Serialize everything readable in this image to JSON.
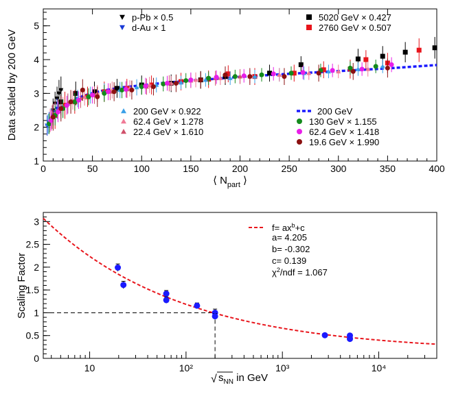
{
  "chart_data": [
    {
      "type": "scatter",
      "xlabel": "⟨ N",
      "xlabel_sub": "part",
      "xlabel_tail": " ⟩",
      "ylabel": "Data scaled by 200 GeV",
      "xlim": [
        0,
        400
      ],
      "ylim": [
        1,
        5.5
      ],
      "x_ticks": [
        0,
        50,
        100,
        150,
        200,
        250,
        300,
        350,
        400
      ],
      "y_ticks": [
        1,
        2,
        3,
        4,
        5
      ],
      "grid": false,
      "legends": [
        {
          "position": "top-left",
          "entries": [
            {
              "label": "p-Pb × 0.5",
              "marker": "triangle-down",
              "color": "#000000"
            },
            {
              "label": "d-Au × 1",
              "marker": "triangle-down",
              "color": "#1a3bd6"
            }
          ]
        },
        {
          "position": "top-right",
          "entries": [
            {
              "label": "5020  GeV × 0.427",
              "marker": "square",
              "color": "#000000"
            },
            {
              "label": "2760  GeV × 0.507",
              "marker": "square",
              "color": "#e8141b"
            }
          ]
        },
        {
          "position": "center-left",
          "entries": [
            {
              "label": "200  GeV × 0.922",
              "marker": "triangle-up",
              "color": "#3aa0e8"
            },
            {
              "label": "62.4 GeV × 1.278",
              "marker": "triangle-up",
              "color": "#f07a96"
            },
            {
              "label": "22.4 GeV × 1.610",
              "marker": "triangle-up",
              "color": "#d0506a"
            }
          ]
        },
        {
          "position": "center-right",
          "entries": [
            {
              "label": "200   GeV",
              "marker": "dashed-line",
              "color": "#1a1aff"
            },
            {
              "label": "130   GeV × 1.155",
              "marker": "circle",
              "color": "#138a1c"
            },
            {
              "label": " 62.4 GeV × 1.418",
              "marker": "circle",
              "color": "#e81ee8"
            },
            {
              "label": "19.6  GeV × 1.990",
              "marker": "circle",
              "color": "#8b1010"
            }
          ]
        }
      ],
      "series": [
        {
          "name": "200   GeV",
          "style": "dashed-line",
          "color": "#1a1aff",
          "x": [
            5,
            10,
            15,
            20,
            30,
            40,
            50,
            60,
            80,
            100,
            125,
            150,
            175,
            200,
            250,
            300,
            350,
            400
          ],
          "y": [
            2.05,
            2.3,
            2.5,
            2.62,
            2.8,
            2.92,
            3.01,
            3.08,
            3.18,
            3.24,
            3.32,
            3.38,
            3.43,
            3.49,
            3.58,
            3.66,
            3.74,
            3.84
          ]
        },
        {
          "name": "p-Pb × 0.5",
          "marker": "triangle-down",
          "color": "#000000",
          "x": [
            10,
            12,
            14,
            16,
            18
          ],
          "y": [
            2.5,
            2.7,
            2.85,
            3.0,
            3.1
          ],
          "yerr": [
            0.35,
            0.35,
            0.35,
            0.4,
            0.4
          ]
        },
        {
          "name": "d-Au × 1",
          "marker": "triangle-down",
          "color": "#1a3bd6",
          "x": [
            4,
            6,
            8,
            10,
            12,
            14
          ],
          "y": [
            2.05,
            2.15,
            2.25,
            2.35,
            2.45,
            2.55
          ],
          "yerr": [
            0.3,
            0.3,
            0.3,
            0.3,
            0.3,
            0.3
          ]
        },
        {
          "name": "5020  GeV × 0.427",
          "marker": "square",
          "color": "#000000",
          "x": [
            18,
            33,
            52,
            75,
            100,
            130,
            160,
            185,
            230,
            262,
            320,
            345,
            368,
            398
          ],
          "y": [
            2.75,
            3.0,
            3.05,
            3.15,
            3.25,
            3.3,
            3.4,
            3.5,
            3.6,
            3.85,
            4.02,
            4.1,
            4.22,
            4.35
          ],
          "yerr": [
            0.4,
            0.35,
            0.3,
            0.28,
            0.28,
            0.26,
            0.26,
            0.25,
            0.25,
            0.25,
            0.3,
            0.3,
            0.3,
            0.32
          ]
        },
        {
          "name": "2760  GeV × 0.507",
          "marker": "square",
          "color": "#e8141b",
          "x": [
            12,
            22,
            32,
            45,
            62,
            85,
            110,
            140,
            168,
            188,
            215,
            255,
            285,
            312,
            328,
            350,
            382
          ],
          "y": [
            2.35,
            2.65,
            2.75,
            2.9,
            3.05,
            3.15,
            3.25,
            3.35,
            3.42,
            3.58,
            3.5,
            3.6,
            3.7,
            3.72,
            4.0,
            3.9,
            4.28
          ],
          "yerr": [
            0.4,
            0.4,
            0.35,
            0.3,
            0.3,
            0.28,
            0.28,
            0.26,
            0.26,
            0.25,
            0.25,
            0.25,
            0.25,
            0.28,
            0.28,
            0.3,
            0.35
          ]
        },
        {
          "name": "200  GeV × 0.922",
          "marker": "triangle-up",
          "color": "#3aa0e8",
          "x": [
            5,
            8,
            12,
            18,
            25,
            35,
            48,
            62,
            78,
            95,
            115,
            140,
            165,
            190,
            215,
            240,
            265,
            290,
            320,
            345
          ],
          "y": [
            2.1,
            2.25,
            2.4,
            2.55,
            2.7,
            2.85,
            2.95,
            3.05,
            3.1,
            3.18,
            3.25,
            3.32,
            3.4,
            3.45,
            3.5,
            3.55,
            3.6,
            3.65,
            3.72,
            3.8
          ],
          "yerr": [
            0.3,
            0.3,
            0.3,
            0.3,
            0.28,
            0.26,
            0.25,
            0.25,
            0.24,
            0.24,
            0.22,
            0.2,
            0.2,
            0.2,
            0.2,
            0.2,
            0.2,
            0.2,
            0.2,
            0.2
          ]
        },
        {
          "name": "62.4 GeV × 1.278",
          "marker": "triangle-up",
          "color": "#f07a96",
          "x": [
            7,
            12,
            20,
            30,
            42,
            55,
            70,
            88,
            108,
            130,
            155,
            180,
            210,
            240,
            270,
            300,
            330
          ],
          "y": [
            2.2,
            2.4,
            2.6,
            2.8,
            2.9,
            3.0,
            3.1,
            3.15,
            3.25,
            3.3,
            3.4,
            3.45,
            3.5,
            3.55,
            3.6,
            3.65,
            3.72
          ],
          "yerr": [
            0.35,
            0.32,
            0.3,
            0.28,
            0.26,
            0.25,
            0.25,
            0.24,
            0.24,
            0.22,
            0.22,
            0.2,
            0.2,
            0.2,
            0.2,
            0.2,
            0.22
          ]
        },
        {
          "name": "22.4 GeV × 1.610",
          "marker": "triangle-up",
          "color": "#d0506a",
          "x": [
            9,
            15,
            25,
            38,
            52,
            68,
            85,
            105,
            128,
            150,
            175,
            200
          ],
          "y": [
            2.3,
            2.5,
            2.7,
            2.85,
            2.95,
            3.05,
            3.12,
            3.2,
            3.3,
            3.38,
            3.45,
            3.5
          ],
          "yerr": [
            0.35,
            0.32,
            0.3,
            0.28,
            0.26,
            0.25,
            0.25,
            0.24,
            0.24,
            0.22,
            0.22,
            0.22
          ]
        },
        {
          "name": "130   GeV × 1.155",
          "marker": "circle",
          "color": "#138a1c",
          "x": [
            6,
            12,
            20,
            32,
            46,
            62,
            80,
            100,
            122,
            145,
            168,
            195,
            222,
            252,
            282,
            312,
            338
          ],
          "y": [
            2.1,
            2.35,
            2.55,
            2.75,
            2.9,
            3.0,
            3.1,
            3.2,
            3.28,
            3.38,
            3.45,
            3.5,
            3.55,
            3.6,
            3.68,
            3.75,
            3.8
          ],
          "yerr": [
            0.3,
            0.3,
            0.28,
            0.26,
            0.25,
            0.25,
            0.24,
            0.24,
            0.22,
            0.22,
            0.2,
            0.2,
            0.2,
            0.2,
            0.2,
            0.2,
            0.2
          ]
        },
        {
          "name": " 62.4 GeV × 1.418",
          "marker": "circle",
          "color": "#e81ee8",
          "x": [
            8,
            15,
            24,
            36,
            50,
            66,
            84,
            104,
            126,
            150,
            176,
            204,
            234,
            264,
            294,
            324,
            354
          ],
          "y": [
            2.2,
            2.45,
            2.65,
            2.8,
            2.95,
            3.05,
            3.12,
            3.22,
            3.3,
            3.4,
            3.48,
            3.52,
            3.58,
            3.62,
            3.68,
            3.72,
            3.85
          ],
          "yerr": [
            0.3,
            0.3,
            0.28,
            0.26,
            0.25,
            0.25,
            0.24,
            0.24,
            0.22,
            0.22,
            0.2,
            0.2,
            0.2,
            0.2,
            0.2,
            0.2,
            0.22
          ]
        },
        {
          "name": "19.6  GeV × 1.990",
          "marker": "circle",
          "color": "#8b1010",
          "x": [
            10,
            18,
            28,
            40,
            55,
            72,
            90,
            112,
            135,
            160,
            185,
            210,
            245,
            280,
            315,
            350
          ],
          "y": [
            2.3,
            2.55,
            2.75,
            3.1,
            2.9,
            3.05,
            3.1,
            3.2,
            3.3,
            3.4,
            3.55,
            3.5,
            3.5,
            3.6,
            3.65,
            3.75
          ],
          "yerr": [
            0.4,
            0.38,
            0.35,
            0.32,
            0.3,
            0.28,
            0.28,
            0.26,
            0.26,
            0.25,
            0.25,
            0.25,
            0.25,
            0.25,
            0.25,
            0.28
          ]
        }
      ]
    },
    {
      "type": "scatter",
      "xscale": "log",
      "xlabel_prefix": "√",
      "xlabel_s": "s",
      "xlabel_sub": "NN",
      "xlabel_tail": " in GeV",
      "ylabel": "Scaling Factor",
      "xlim": [
        3.3,
        40000
      ],
      "ylim": [
        0,
        3.2
      ],
      "x_ticks": [
        10,
        100,
        1000,
        10000
      ],
      "x_tick_labels": [
        "10",
        "10²",
        "10³",
        "10⁴"
      ],
      "y_ticks": [
        0,
        0.5,
        1,
        1.5,
        2,
        2.5,
        3
      ],
      "y_tick_labels": [
        "0",
        "0.5",
        "1",
        "1.5",
        "2",
        "2.5",
        "3"
      ],
      "grid": false,
      "legend": {
        "position": "top-right",
        "line_label": "f= ax",
        "line_label_sup": "b",
        "line_label_tail": "+c",
        "params": [
          "a= 4.205",
          "b= -0.302",
          "c= 0.139"
        ],
        "chi_label": "χ",
        "chi_sup": "2",
        "chi_tail": "/ndf = 1.067"
      },
      "fit": {
        "name": "f= ax^b+c",
        "a": 4.205,
        "b": -0.302,
        "c": 0.139,
        "color": "#e8141b",
        "style": "dashed"
      },
      "reference_lines": {
        "x": 200,
        "y": 1,
        "style": "dashed",
        "color": "#000000"
      },
      "series": [
        {
          "name": "data",
          "marker": "circle",
          "color": "#1a1aff",
          "x": [
            19.6,
            22.4,
            62.4,
            62.4,
            130,
            200,
            200,
            2760,
            5020,
            5020
          ],
          "y": [
            1.99,
            1.61,
            1.418,
            1.278,
            1.155,
            1.0,
            0.922,
            0.507,
            0.5,
            0.427
          ],
          "yerr": [
            0.08,
            0.08,
            0.07,
            0.07,
            0.06,
            0.08,
            0.06,
            0.03,
            0.03,
            0.03
          ]
        }
      ]
    }
  ]
}
